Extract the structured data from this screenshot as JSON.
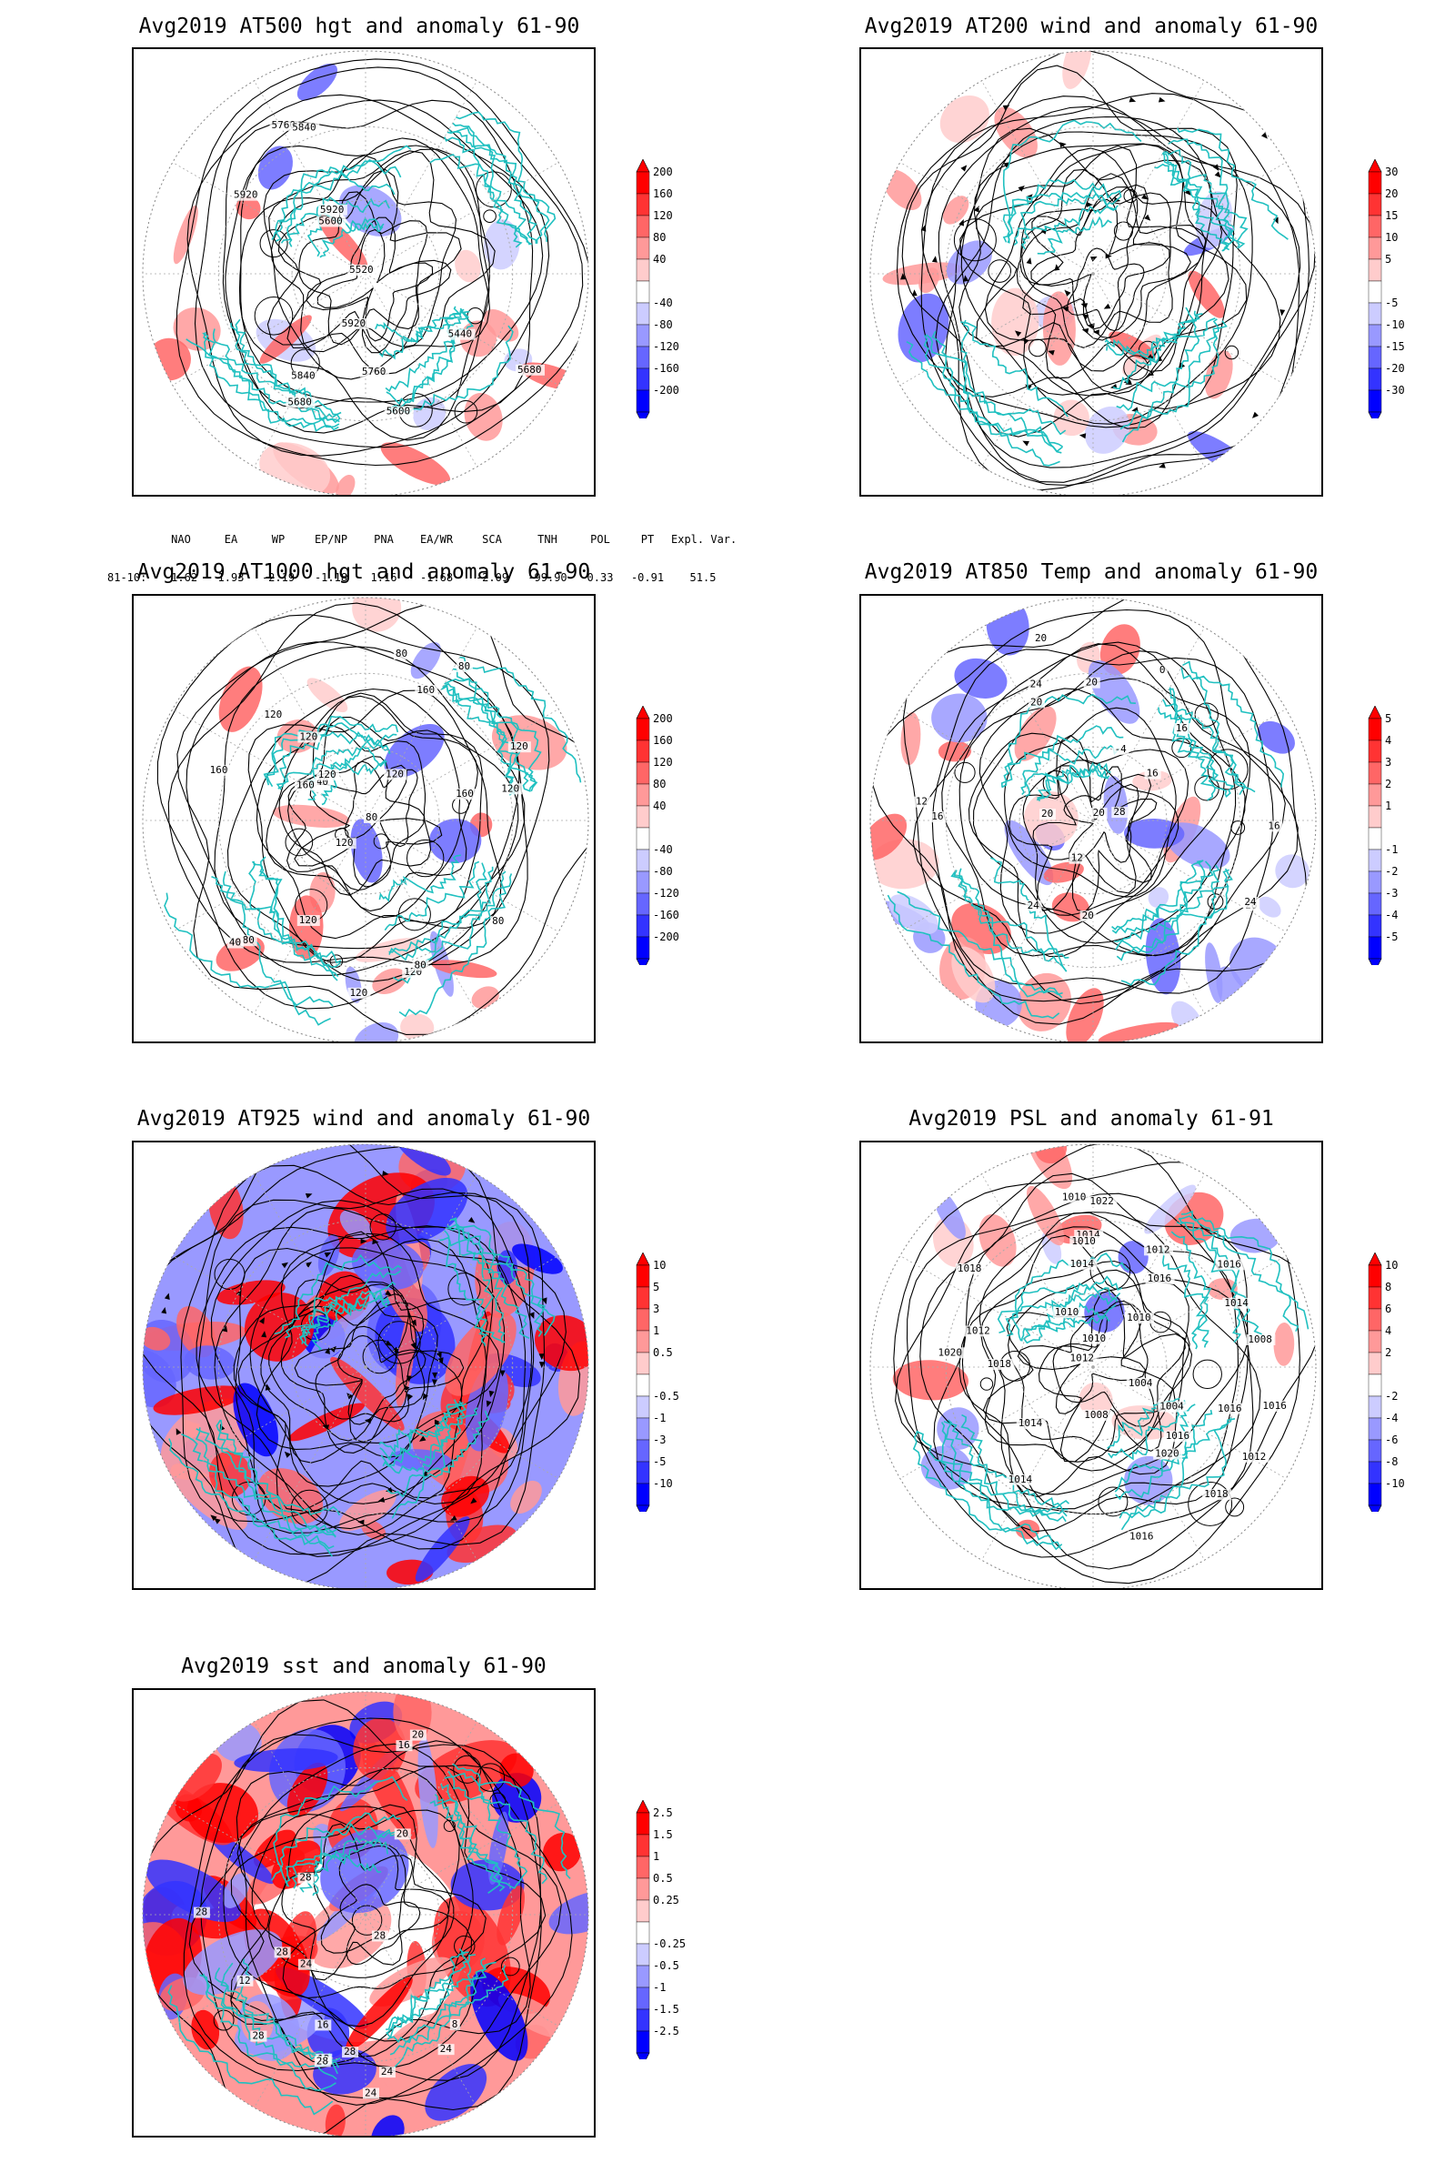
{
  "panels": [
    {
      "id": "p1",
      "title": "Avg2019 AT500 hgt and anomaly 61-90",
      "field": "hgt",
      "colorbar": [
        "200",
        "160",
        "120",
        "80",
        "40",
        "-40",
        "-80",
        "-120",
        "-160",
        "-200"
      ],
      "contour_labels": [
        "5840",
        "5760",
        "5680",
        "5440",
        "5600",
        "5520",
        "5600",
        "5840",
        "5920",
        "5760",
        "5680",
        "5920",
        "5920"
      ],
      "index_table": {
        "row_label": "81-10:",
        "names": [
          "NAO",
          "EA",
          "WP",
          "EP/NP",
          "PNA",
          "EA/WR",
          "SCA",
          "TNH",
          "POL",
          "PT",
          "Expl. Var."
        ],
        "values": [
          "-1.62",
          "1.93",
          "-2.19",
          "-1.18",
          "1.16",
          "-1.68",
          "-2.09",
          "-99.90",
          "0.33",
          "-0.91",
          "51.5"
        ]
      }
    },
    {
      "id": "p2",
      "title": "Avg2019 AT200 wind and anomaly 61-90",
      "field": "wind200",
      "colorbar": [
        "30",
        "20",
        "15",
        "10",
        "5",
        "-5",
        "-10",
        "-15",
        "-20",
        "-30"
      ],
      "contour_labels": []
    },
    {
      "id": "p3",
      "title": "Avg2019 AT1000 hgt and anomaly 61-90",
      "field": "hgt1000",
      "colorbar": [
        "200",
        "160",
        "120",
        "80",
        "40",
        "-40",
        "-80",
        "-120",
        "-160",
        "-200"
      ],
      "contour_labels": [
        "80",
        "120",
        "160",
        "120",
        "80",
        "120",
        "80",
        "120",
        "40",
        "160",
        "120",
        "80",
        "120",
        "160",
        "80",
        "120",
        "40",
        "80",
        "160",
        "120",
        "120",
        "120"
      ]
    },
    {
      "id": "p4",
      "title": "Avg2019 AT850 Temp and anomaly 61-90",
      "field": "temp",
      "colorbar": [
        "5",
        "4",
        "3",
        "2",
        "1",
        "-1",
        "-2",
        "-3",
        "-4",
        "-5"
      ],
      "contour_labels": [
        "16",
        "20",
        "12",
        "24",
        "20",
        "20",
        "-4",
        "0",
        "28",
        "24",
        "20",
        "16",
        "12",
        "28",
        "20",
        "24",
        "16",
        "16",
        "20"
      ]
    },
    {
      "id": "p5",
      "title": "Avg2019 AT925 wind and anomaly 61-90",
      "field": "wind925",
      "colorbar": [
        "10",
        "5",
        "3",
        "1",
        "0.5",
        "-0.5",
        "-1",
        "-3",
        "-5",
        "-10"
      ],
      "contour_labels": []
    },
    {
      "id": "p6",
      "title": "Avg2019 PSL and anomaly 61-91",
      "field": "psl",
      "colorbar": [
        "10",
        "8",
        "6",
        "4",
        "2",
        "-2",
        "-4",
        "-6",
        "-8",
        "-10"
      ],
      "contour_labels": [
        "1010",
        "1012",
        "1014",
        "1016",
        "1018",
        "1020",
        "1016",
        "1004",
        "1016",
        "1012",
        "1014",
        "1008",
        "1010",
        "1014",
        "1016",
        "1012",
        "1020",
        "1010",
        "1008",
        "1004",
        "1018",
        "1014",
        "1022",
        "1016",
        "1018",
        "1010",
        "1012",
        "1014",
        "1010",
        "1016"
      ]
    },
    {
      "id": "p7",
      "title": "Avg2019 sst and anomaly 61-90",
      "field": "sst",
      "colorbar": [
        "2.5",
        "1.5",
        "1",
        "0.5",
        "0.25",
        "-0.25",
        "-0.5",
        "-1",
        "-1.5",
        "-2.5"
      ],
      "contour_labels": [
        "28",
        "28",
        "24",
        "20",
        "16",
        "12",
        "24",
        "28",
        "28",
        "8",
        "16",
        "12",
        "20",
        "24",
        "28",
        "28",
        "28",
        "24"
      ]
    }
  ],
  "colors": {
    "reds": [
      "#ff0000",
      "#ff3333",
      "#ff6666",
      "#ff9999",
      "#ffcccc"
    ],
    "blues": [
      "#ccccff",
      "#9999ff",
      "#6666ff",
      "#3333ff",
      "#0000ff"
    ],
    "coast": "#20c0c0",
    "grid": "#aaaaaa"
  }
}
